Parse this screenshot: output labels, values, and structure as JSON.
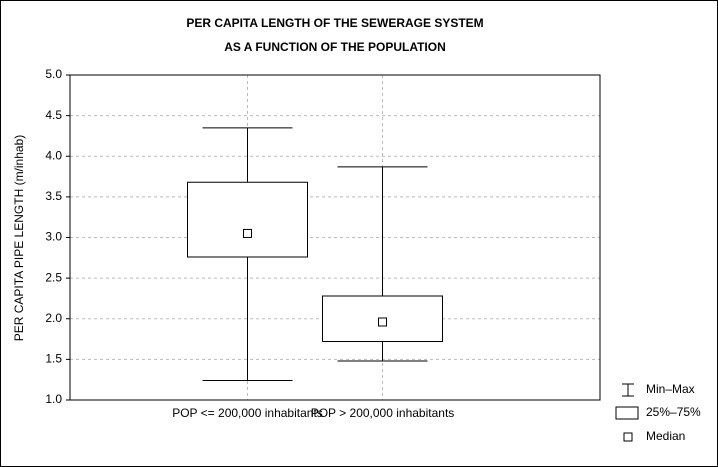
{
  "chart_data": {
    "type": "box",
    "title": [
      "PER CAPITA LENGTH OF THE SEWERAGE SYSTEM",
      "AS A FUNCTION OF THE POPULATION"
    ],
    "ylabel": "PER CAPITA PIPE LENGTH (m/inhab)",
    "categories": [
      "POP <= 200,000 inhabitants",
      "POP > 200,000 inhabitants"
    ],
    "min": [
      1.24,
      1.48
    ],
    "q1": [
      2.76,
      1.72
    ],
    "median": [
      3.05,
      1.96
    ],
    "q3": [
      3.68,
      2.28
    ],
    "max": [
      4.35,
      3.87
    ],
    "legend": [
      "Min–Max",
      "25%–75%",
      "Median"
    ],
    "ylim": [
      1.0,
      5.0
    ],
    "yticks": [
      {
        "value": 1,
        "label": "1.0"
      },
      {
        "value": 1.5,
        "label": "1.5"
      },
      {
        "value": 2,
        "label": "2.0"
      },
      {
        "value": 2.5,
        "label": "2.5"
      },
      {
        "value": 3,
        "label": "3.0"
      },
      {
        "value": 3.5,
        "label": "3.5"
      },
      {
        "value": 4,
        "label": "4.0"
      },
      {
        "value": 4.5,
        "label": "4.5"
      },
      {
        "value": 5,
        "label": "5.0"
      }
    ],
    "grid": true,
    "color": "#000000"
  }
}
